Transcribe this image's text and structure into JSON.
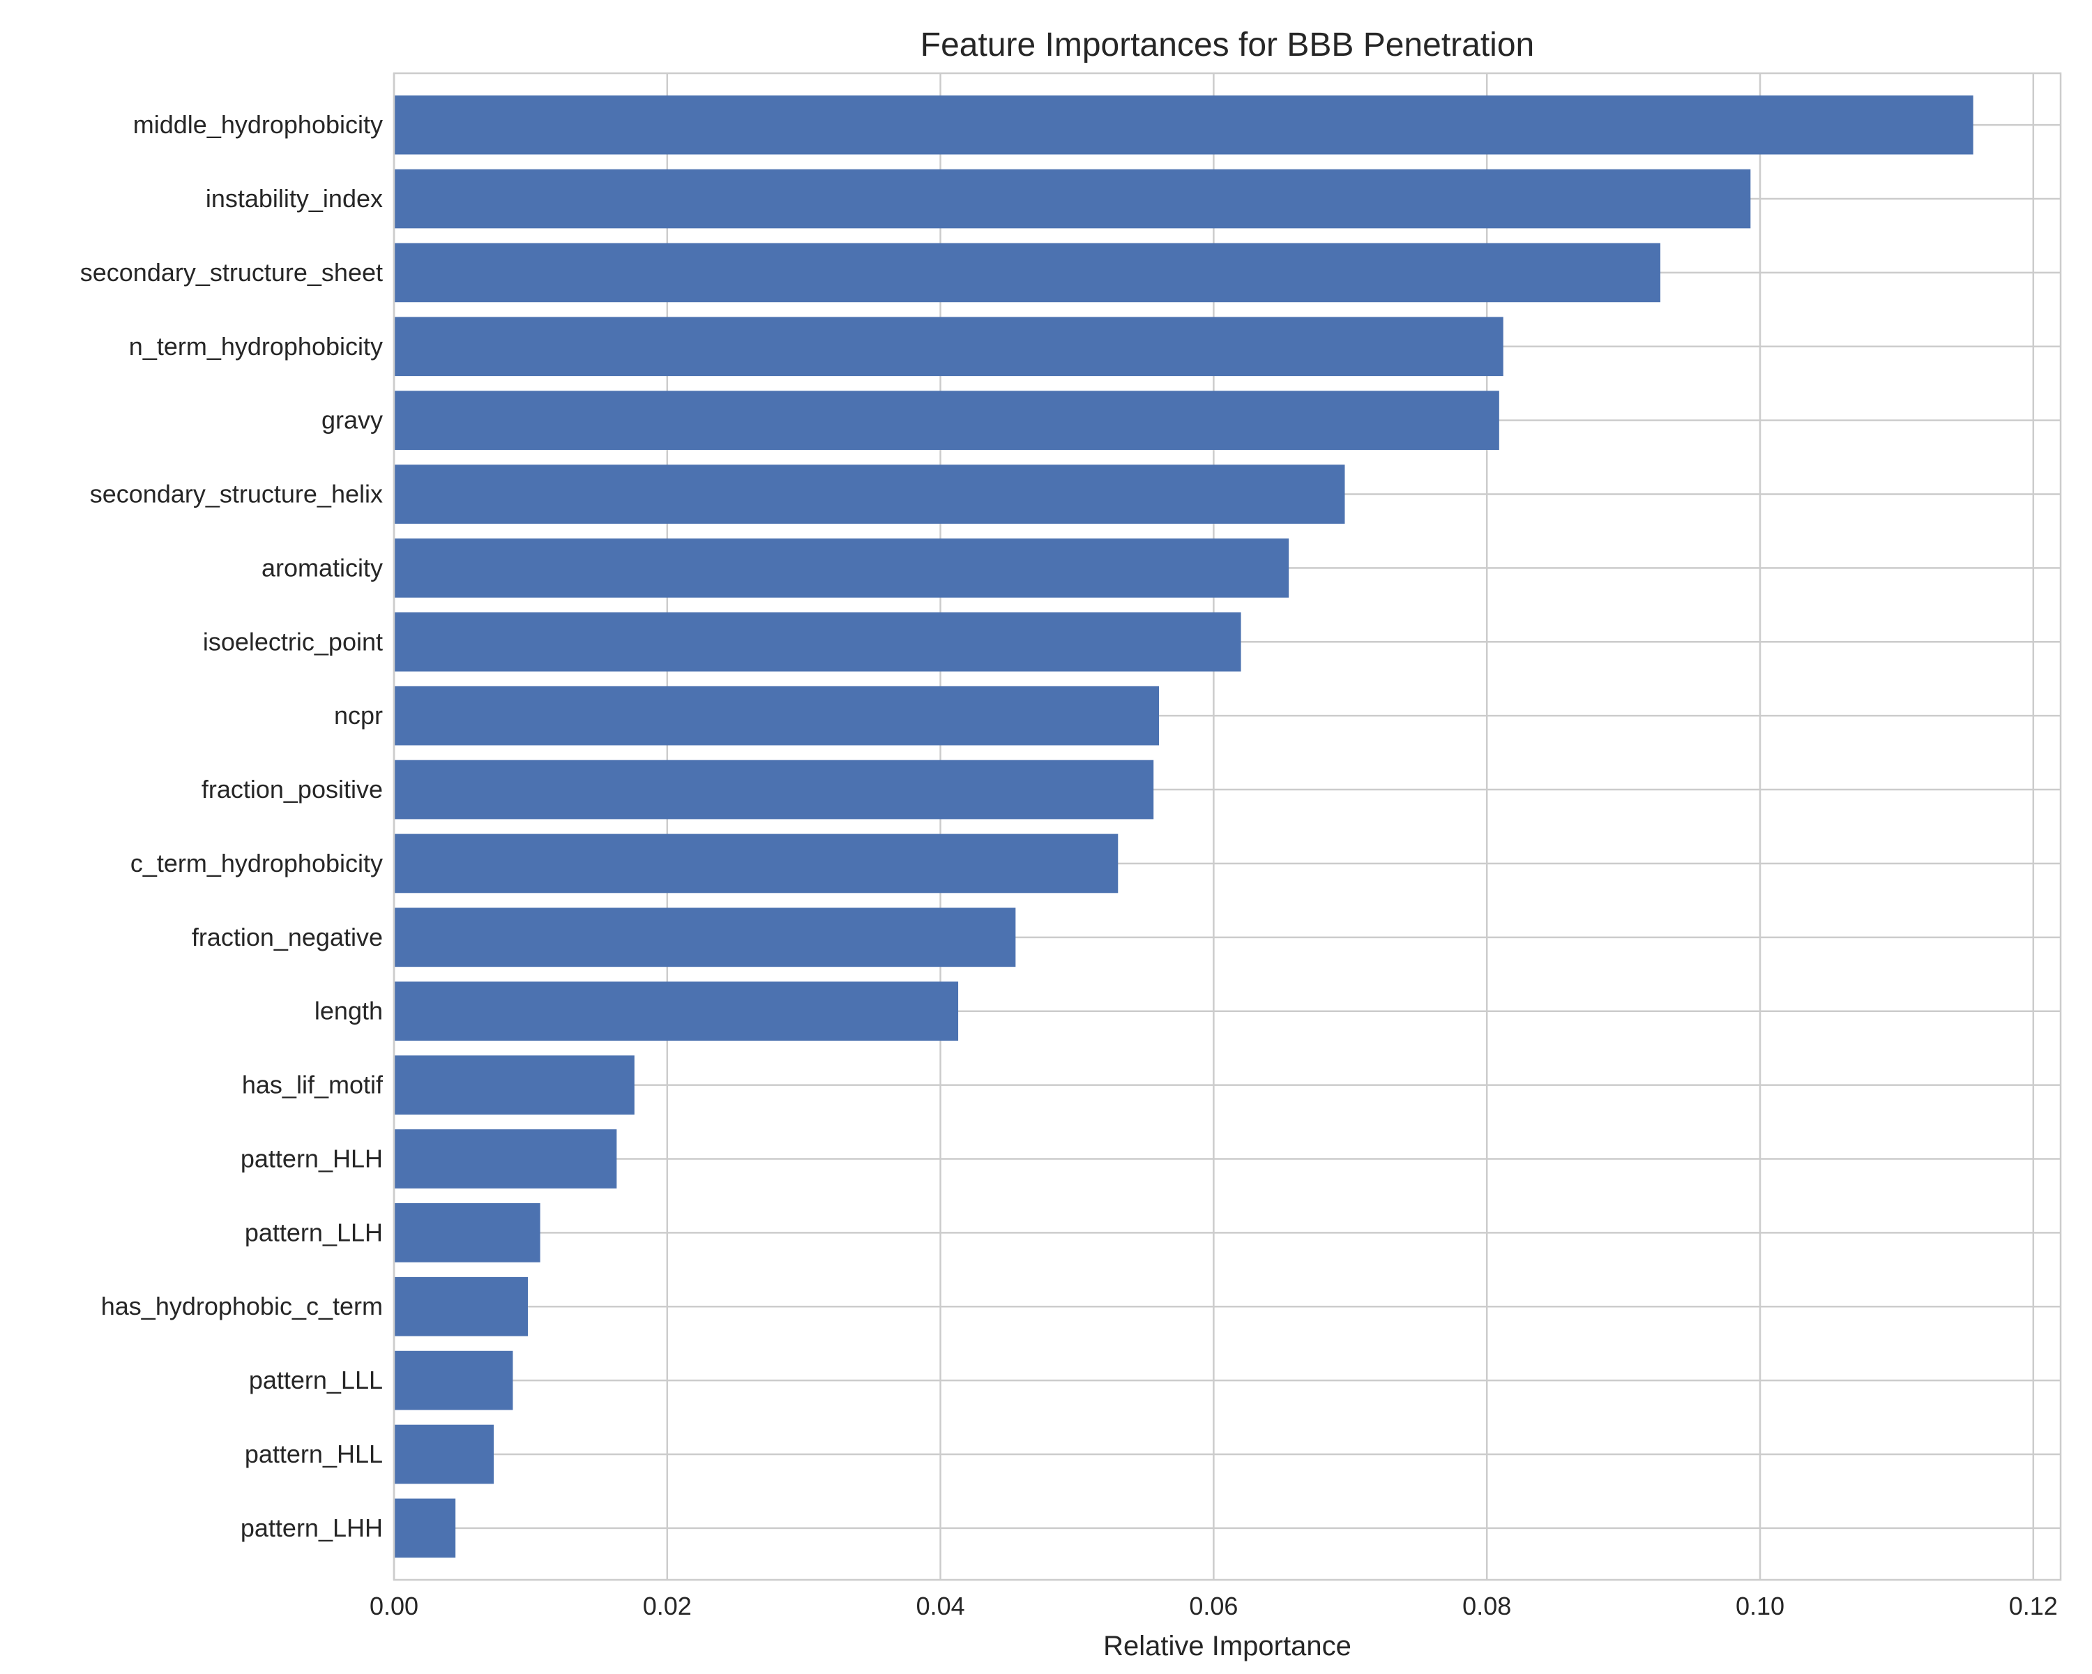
{
  "chart_data": {
    "type": "bar",
    "orientation": "horizontal",
    "title": "Feature Importances for BBB Penetration",
    "xlabel": "Relative Importance",
    "ylabel": "",
    "xlim": [
      0,
      0.122
    ],
    "xticks": [
      0.0,
      0.02,
      0.04,
      0.06,
      0.08,
      0.1,
      0.12
    ],
    "xtick_labels": [
      "0.00",
      "0.02",
      "0.04",
      "0.06",
      "0.08",
      "0.10",
      "0.12"
    ],
    "grid": true,
    "bar_color": "#4c72b0",
    "categories": [
      "middle_hydrophobicity",
      "instability_index",
      "secondary_structure_sheet",
      "n_term_hydrophobicity",
      "gravy",
      "secondary_structure_helix",
      "aromaticity",
      "isoelectric_point",
      "ncpr",
      "fraction_positive",
      "c_term_hydrophobicity",
      "fraction_negative",
      "length",
      "has_lif_motif",
      "pattern_HLH",
      "pattern_LLH",
      "has_hydrophobic_c_term",
      "pattern_LLL",
      "pattern_HLL",
      "pattern_LHH"
    ],
    "values": [
      0.1156,
      0.0993,
      0.0927,
      0.0812,
      0.0809,
      0.0696,
      0.0655,
      0.062,
      0.056,
      0.0556,
      0.053,
      0.0455,
      0.0413,
      0.0176,
      0.0163,
      0.0107,
      0.0098,
      0.0087,
      0.0073,
      0.0045
    ]
  }
}
